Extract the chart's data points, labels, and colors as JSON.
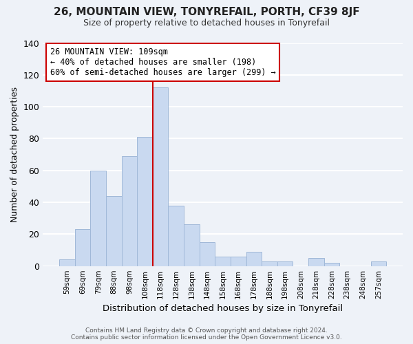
{
  "title": "26, MOUNTAIN VIEW, TONYREFAIL, PORTH, CF39 8JF",
  "subtitle": "Size of property relative to detached houses in Tonyrefail",
  "xlabel": "Distribution of detached houses by size in Tonyrefail",
  "ylabel": "Number of detached properties",
  "bar_labels": [
    "59sqm",
    "69sqm",
    "79sqm",
    "88sqm",
    "98sqm",
    "108sqm",
    "118sqm",
    "128sqm",
    "138sqm",
    "148sqm",
    "158sqm",
    "168sqm",
    "178sqm",
    "188sqm",
    "198sqm",
    "208sqm",
    "218sqm",
    "228sqm",
    "238sqm",
    "248sqm",
    "257sqm"
  ],
  "bar_values": [
    4,
    23,
    60,
    44,
    69,
    81,
    112,
    38,
    26,
    15,
    6,
    6,
    9,
    3,
    3,
    0,
    5,
    2,
    0,
    0,
    3
  ],
  "bar_color": "#c9d9f0",
  "bar_edgecolor": "#a0b8d8",
  "vline_color": "#cc0000",
  "annotation_lines": [
    "26 MOUNTAIN VIEW: 109sqm",
    "← 40% of detached houses are smaller (198)",
    "60% of semi-detached houses are larger (299) →"
  ],
  "annotation_box_color": "white",
  "annotation_box_edgecolor": "#cc0000",
  "ylim": [
    0,
    140
  ],
  "yticks": [
    0,
    20,
    40,
    60,
    80,
    100,
    120,
    140
  ],
  "footer_lines": [
    "Contains HM Land Registry data © Crown copyright and database right 2024.",
    "Contains public sector information licensed under the Open Government Licence v3.0."
  ],
  "background_color": "#eef2f8",
  "grid_color": "white",
  "title_fontsize": 11,
  "subtitle_fontsize": 9
}
